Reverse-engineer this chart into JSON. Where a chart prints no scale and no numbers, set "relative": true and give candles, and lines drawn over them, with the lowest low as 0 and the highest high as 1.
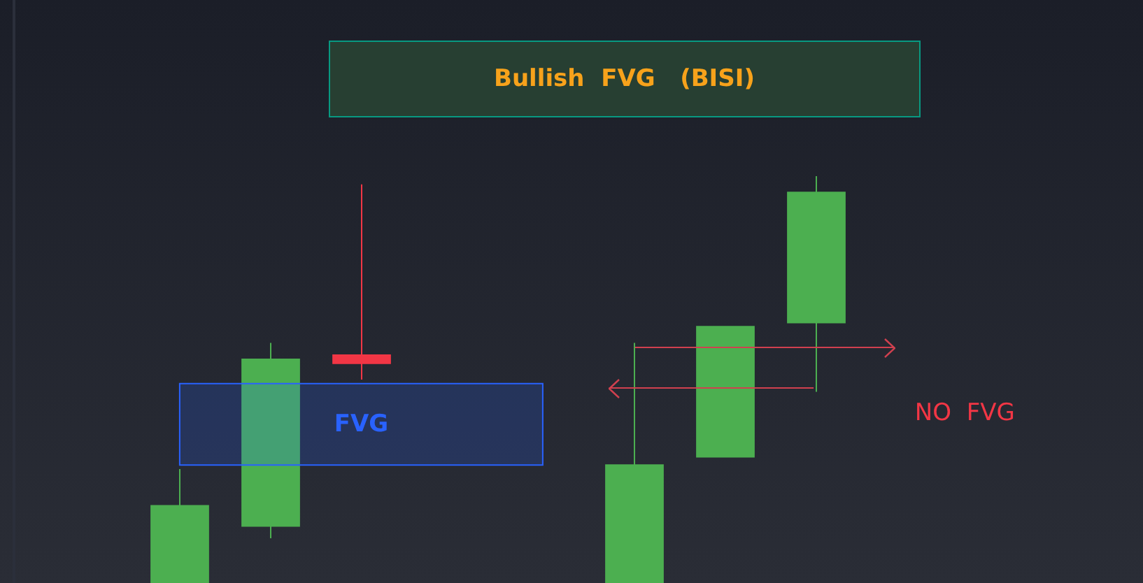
{
  "chart_data": {
    "type": "candlestick",
    "title": "Bullish  FVG   (BISI)",
    "annotations": [
      "NO  FVG"
    ],
    "categories": [
      null,
      null,
      null,
      null,
      null,
      null,
      null,
      null
    ],
    "ohlc": [
      [
        0,
        0.28,
        0,
        0.19
      ],
      [
        0.14,
        0.59,
        0.11,
        0.55
      ],
      [
        0.56,
        0.98,
        0.5,
        0.54
      ],
      null,
      null,
      [
        0,
        0.59,
        0,
        0.29
      ],
      [
        0.31,
        0.63,
        0.31,
        0.63
      ],
      [
        0.64,
        1,
        0.47,
        0.96
      ]
    ],
    "colors": [
      "#4caf50",
      "#4caf50",
      "#f23645",
      null,
      null,
      "#4caf50",
      "#4caf50",
      "#4caf50"
    ],
    "relative": true,
    "tick_labels": false,
    "bands": [
      {
        "axis": "y",
        "from": 0.29,
        "to": 0.49,
        "label": "FVG",
        "color": "#2962ff"
      }
    ],
    "ref_lines": [
      {
        "axis": "y",
        "value": 0.58,
        "color": "#d0404f"
      },
      {
        "axis": "y",
        "value": 0.48,
        "color": "#d0404f"
      }
    ]
  }
}
